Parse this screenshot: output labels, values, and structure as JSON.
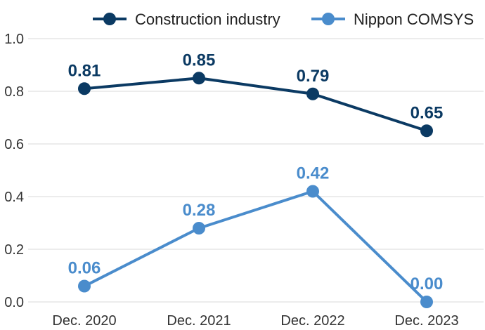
{
  "chart_data": {
    "type": "line",
    "categories": [
      "Dec. 2020",
      "Dec. 2021",
      "Dec. 2022",
      "Dec. 2023"
    ],
    "series": [
      {
        "name": "Construction industry",
        "values": [
          0.81,
          0.85,
          0.79,
          0.65
        ],
        "labels": [
          "0.81",
          "0.85",
          "0.79",
          "0.65"
        ],
        "color": "#0b3a63"
      },
      {
        "name": "Nippon COMSYS",
        "values": [
          0.06,
          0.28,
          0.42,
          0.0
        ],
        "labels": [
          "0.06",
          "0.28",
          "0.42",
          "0.00"
        ],
        "color": "#4a8ccc"
      }
    ],
    "y_ticks": [
      "0.0",
      "0.2",
      "0.4",
      "0.6",
      "0.8",
      "1.0"
    ],
    "ylim": [
      0,
      1.0
    ],
    "grid": true,
    "legend_position": "top-right"
  }
}
